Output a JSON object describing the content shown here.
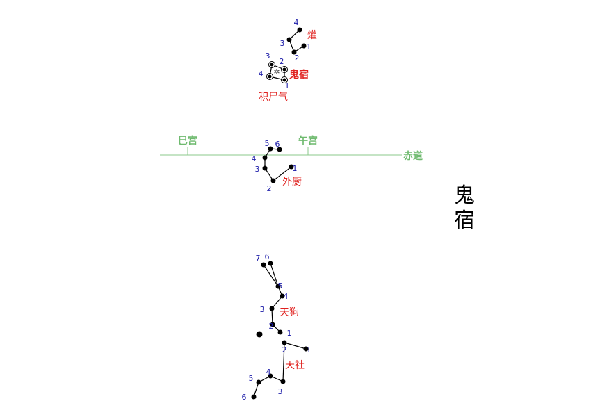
{
  "title": "鬼宿",
  "colors": {
    "star": "#000000",
    "line": "#000000",
    "number": "#1a1aa8",
    "constellation": "#e0201e",
    "ecliptic": "#8bc98b",
    "ecliptic_label": "#6fba6f",
    "title": "#000000"
  },
  "ecliptic": {
    "label": "赤道",
    "markers": [
      {
        "label": "巳宫"
      },
      {
        "label": "午宫"
      }
    ]
  },
  "constellations": [
    {
      "name": "爟",
      "bold": false,
      "stars": [
        "1",
        "2",
        "3",
        "4"
      ]
    },
    {
      "name": "鬼宿",
      "bold": true,
      "stars": [
        "1",
        "2",
        "3",
        "4"
      ]
    },
    {
      "name": "积尸气",
      "bold": false,
      "stars": []
    },
    {
      "name": "外厨",
      "bold": false,
      "stars": [
        "1",
        "2",
        "3",
        "4",
        "5",
        "6"
      ]
    },
    {
      "name": "天狗",
      "bold": false,
      "stars": [
        "1",
        "2",
        "3",
        "4",
        "5",
        "6",
        "7"
      ]
    },
    {
      "name": "天社",
      "bold": false,
      "stars": [
        "1",
        "2",
        "3",
        "4",
        "5",
        "6"
      ]
    }
  ]
}
